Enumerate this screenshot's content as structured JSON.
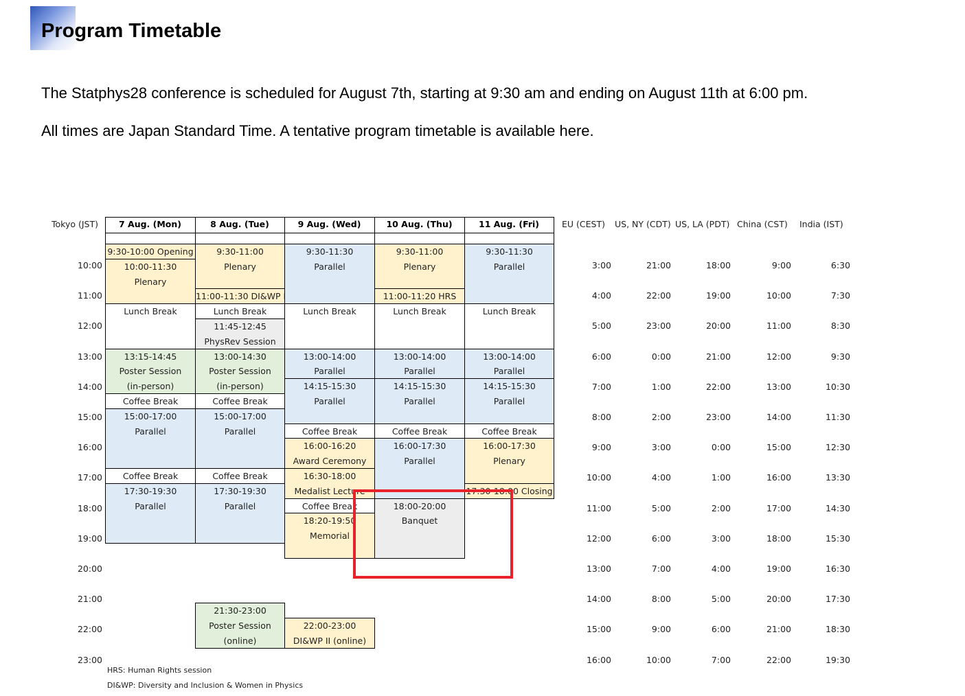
{
  "title": "Program Timetable",
  "intro": [
    "The Statphys28 conference is scheduled for August 7th, starting at 9:30 am and ending on August 11th at 6:00 pm.",
    "All times are Japan Standard Time. A tentative program timetable is available here."
  ],
  "timetable": {
    "tokyo_label": "Tokyo (JST)",
    "days": [
      "7 Aug. (Mon)",
      "8 Aug. (Tue)",
      "9 Aug. (Wed)",
      "10 Aug. (Thu)",
      "11 Aug. (Fri)"
    ],
    "zones": [
      "EU (CEST)",
      "US, NY (CDT)",
      "US, LA (PDT)",
      "China (CST)",
      "India (IST)"
    ],
    "hours": [
      "10:00",
      "11:00",
      "12:00",
      "13:00",
      "14:00",
      "15:00",
      "16:00",
      "17:00",
      "18:00",
      "19:00",
      "20:00",
      "21:00",
      "22:00",
      "23:00"
    ],
    "zone_times": [
      [
        "3:00",
        "4:00",
        "5:00",
        "6:00",
        "7:00",
        "8:00",
        "9:00",
        "10:00",
        "11:00",
        "12:00",
        "13:00",
        "14:00",
        "15:00",
        "16:00"
      ],
      [
        "21:00",
        "22:00",
        "23:00",
        "0:00",
        "1:00",
        "2:00",
        "3:00",
        "4:00",
        "5:00",
        "6:00",
        "7:00",
        "8:00",
        "9:00",
        "10:00"
      ],
      [
        "18:00",
        "19:00",
        "20:00",
        "21:00",
        "22:00",
        "23:00",
        "0:00",
        "1:00",
        "2:00",
        "3:00",
        "4:00",
        "5:00",
        "6:00",
        "7:00"
      ],
      [
        "9:00",
        "10:00",
        "11:00",
        "12:00",
        "13:00",
        "14:00",
        "15:00",
        "16:00",
        "17:00",
        "18:00",
        "19:00",
        "20:00",
        "21:00",
        "22:00"
      ],
      [
        "6:30",
        "7:30",
        "8:30",
        "9:30",
        "10:30",
        "11:30",
        "12:30",
        "13:30",
        "14:30",
        "15:30",
        "16:30",
        "17:30",
        "18:30",
        "19:30"
      ]
    ],
    "colors": {
      "plenary": "#fff2cc",
      "parallel": "#deebf7",
      "poster": "#e2efda",
      "grey": "#ededed",
      "white": "#ffffff",
      "highlight": "#e8212b"
    },
    "sessions": [
      {
        "day": 0,
        "start": 2,
        "end": 3,
        "kind": "plenary",
        "lines": [
          "9:30-10:00 Opening"
        ]
      },
      {
        "day": 0,
        "start": 3,
        "end": 6,
        "kind": "plenary",
        "lines": [
          "10:00-11:30",
          "Plenary"
        ]
      },
      {
        "day": 0,
        "start": 6,
        "end": 9,
        "kind": "white",
        "lines": [
          "Lunch Break"
        ]
      },
      {
        "day": 0,
        "start": 9,
        "end": 12,
        "kind": "poster",
        "lines": [
          "13:15-14:45",
          "Poster Session",
          "(in-person)"
        ]
      },
      {
        "day": 0,
        "start": 12,
        "end": 13,
        "kind": "white",
        "lines": [
          "Coffee Break"
        ]
      },
      {
        "day": 0,
        "start": 13,
        "end": 17,
        "kind": "parallel",
        "lines": [
          "15:00-17:00",
          "Parallel"
        ]
      },
      {
        "day": 0,
        "start": 17,
        "end": 18,
        "kind": "white",
        "lines": [
          "Coffee Break"
        ]
      },
      {
        "day": 0,
        "start": 18,
        "end": 22,
        "kind": "parallel",
        "lines": [
          "17:30-19:30",
          "Parallel"
        ]
      },
      {
        "day": 1,
        "start": 2,
        "end": 5,
        "kind": "plenary",
        "lines": [
          "9:30-11:00",
          "Plenary"
        ]
      },
      {
        "day": 1,
        "start": 5,
        "end": 6,
        "kind": "plenary",
        "lines": [
          "11:00-11:30 DI&WP I"
        ]
      },
      {
        "day": 1,
        "start": 6,
        "end": 7,
        "kind": "white",
        "lines": [
          "Lunch Break"
        ]
      },
      {
        "day": 1,
        "start": 7,
        "end": 9,
        "kind": "grey",
        "lines": [
          "11:45-12:45",
          "PhysRev Session"
        ]
      },
      {
        "day": 1,
        "start": 9,
        "end": 12,
        "kind": "poster",
        "lines": [
          "13:00-14:30",
          "Poster Session",
          "(in-person)"
        ]
      },
      {
        "day": 1,
        "start": 12,
        "end": 13,
        "kind": "white",
        "lines": [
          "Coffee Break"
        ]
      },
      {
        "day": 1,
        "start": 13,
        "end": 17,
        "kind": "parallel",
        "lines": [
          "15:00-17:00",
          "Parallel"
        ]
      },
      {
        "day": 1,
        "start": 17,
        "end": 18,
        "kind": "white",
        "lines": [
          "Coffee Break"
        ]
      },
      {
        "day": 1,
        "start": 18,
        "end": 22,
        "kind": "parallel",
        "lines": [
          "17:30-19:30",
          "Parallel"
        ]
      },
      {
        "day": 1,
        "start": 26,
        "end": 29,
        "kind": "poster",
        "lines": [
          "21:30-23:00",
          "Poster Session",
          "(online)"
        ]
      },
      {
        "day": 2,
        "start": 2,
        "end": 6,
        "kind": "parallel",
        "lines": [
          "9:30-11:30",
          "Parallel"
        ]
      },
      {
        "day": 2,
        "start": 6,
        "end": 9,
        "kind": "white",
        "lines": [
          "Lunch Break"
        ]
      },
      {
        "day": 2,
        "start": 9,
        "end": 11,
        "kind": "parallel",
        "lines": [
          "13:00-14:00",
          "Parallel"
        ]
      },
      {
        "day": 2,
        "start": 11,
        "end": 14,
        "kind": "parallel",
        "lines": [
          "14:15-15:30",
          "Parallel"
        ]
      },
      {
        "day": 2,
        "start": 14,
        "end": 15,
        "kind": "white",
        "lines": [
          "Coffee Break"
        ]
      },
      {
        "day": 2,
        "start": 15,
        "end": 17,
        "kind": "plenary",
        "lines": [
          "16:00-16:20",
          "Award Ceremony"
        ]
      },
      {
        "day": 2,
        "start": 17,
        "end": 19,
        "kind": "plenary",
        "lines": [
          "16:30-18:00",
          "Medalist Lecture"
        ]
      },
      {
        "day": 2,
        "start": 19,
        "end": 20,
        "kind": "white",
        "lines": [
          "Coffee Break"
        ]
      },
      {
        "day": 2,
        "start": 20,
        "end": 23,
        "kind": "plenary",
        "lines": [
          "18:20-19:50",
          "Memorial"
        ]
      },
      {
        "day": 2,
        "start": 27,
        "end": 29,
        "kind": "plenary",
        "lines": [
          "22:00-23:00",
          "DI&WP II (online)"
        ]
      },
      {
        "day": 3,
        "start": 2,
        "end": 5,
        "kind": "plenary",
        "lines": [
          "9:30-11:00",
          "Plenary"
        ]
      },
      {
        "day": 3,
        "start": 5,
        "end": 6,
        "kind": "plenary",
        "lines": [
          "11:00-11:20 HRS"
        ]
      },
      {
        "day": 3,
        "start": 6,
        "end": 9,
        "kind": "white",
        "lines": [
          "Lunch Break"
        ]
      },
      {
        "day": 3,
        "start": 9,
        "end": 11,
        "kind": "parallel",
        "lines": [
          "13:00-14:00",
          "Parallel"
        ]
      },
      {
        "day": 3,
        "start": 11,
        "end": 14,
        "kind": "parallel",
        "lines": [
          "14:15-15:30",
          "Parallel"
        ]
      },
      {
        "day": 3,
        "start": 14,
        "end": 15,
        "kind": "white",
        "lines": [
          "Coffee Break"
        ]
      },
      {
        "day": 3,
        "start": 15,
        "end": 19,
        "kind": "parallel",
        "lines": [
          "16:00-17:30",
          "Parallel"
        ]
      },
      {
        "day": 3,
        "start": 19,
        "end": 23,
        "kind": "grey",
        "lines": [
          "18:00-20:00",
          "Banquet"
        ]
      },
      {
        "day": 4,
        "start": 2,
        "end": 6,
        "kind": "parallel",
        "lines": [
          "9:30-11:30",
          "Parallel"
        ]
      },
      {
        "day": 4,
        "start": 6,
        "end": 9,
        "kind": "white",
        "lines": [
          "Lunch Break"
        ]
      },
      {
        "day": 4,
        "start": 9,
        "end": 11,
        "kind": "parallel",
        "lines": [
          "13:00-14:00",
          "Parallel"
        ]
      },
      {
        "day": 4,
        "start": 11,
        "end": 14,
        "kind": "parallel",
        "lines": [
          "14:15-15:30",
          "Parallel"
        ]
      },
      {
        "day": 4,
        "start": 14,
        "end": 15,
        "kind": "white",
        "lines": [
          "Coffee Break"
        ]
      },
      {
        "day": 4,
        "start": 15,
        "end": 18,
        "kind": "plenary",
        "lines": [
          "16:00-17:30",
          "Plenary"
        ]
      },
      {
        "day": 4,
        "start": 18,
        "end": 19,
        "kind": "plenary",
        "lines": [
          "17:30-18:00 Closing"
        ]
      }
    ],
    "notes": [
      "HRS: Human Rights session",
      "DI&WP: Diversity and Inclusion & Women in Physics"
    ]
  }
}
